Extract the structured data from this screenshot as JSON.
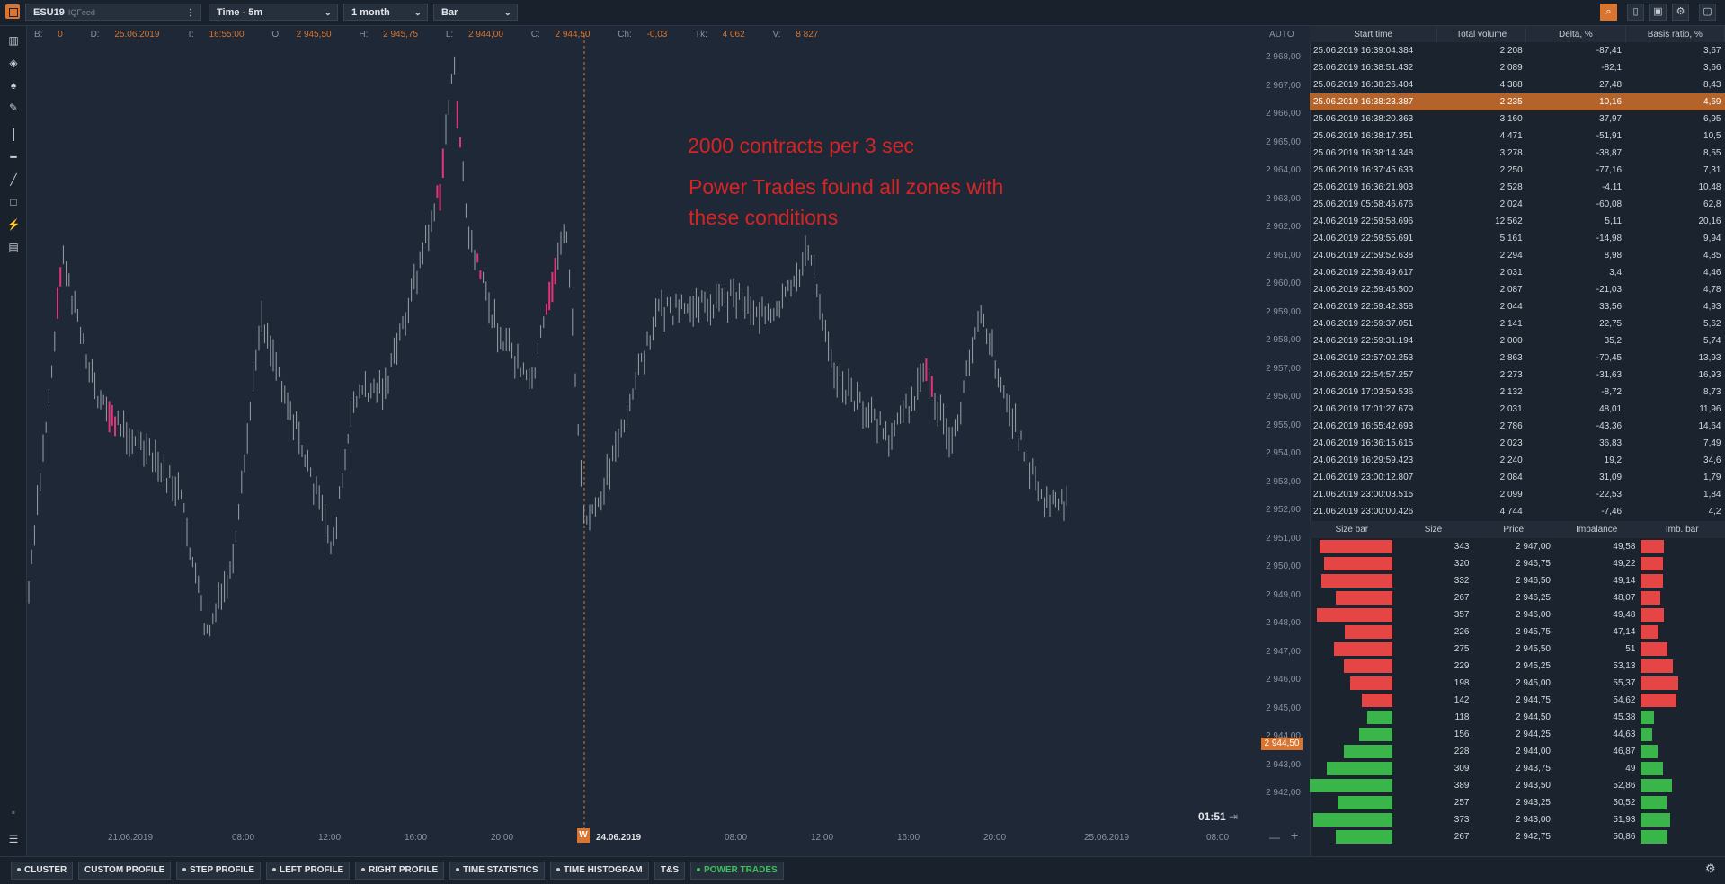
{
  "toolbar": {
    "symbol": "ESU19",
    "feed": "IQFeed",
    "timeframe": "Time - 5m",
    "period": "1 month",
    "chart_type": "Bar"
  },
  "infobar": {
    "b_label": "B:",
    "b_val": "0",
    "d_label": "D:",
    "d_val": "25.06.2019",
    "t_label": "T:",
    "t_val": "16:55:00",
    "o_label": "O:",
    "o_val": "2 945,50",
    "h_label": "H:",
    "h_val": "2 945,75",
    "l_label": "L:",
    "l_val": "2 944,00",
    "c_label": "C:",
    "c_val": "2 944,50",
    "ch_label": "Ch:",
    "ch_val": "-0,03",
    "tk_label": "Tk:",
    "tk_val": "4 062",
    "v_label": "V:",
    "v_val": "8 827"
  },
  "auto_label": "AUTO",
  "annotation": {
    "line1": "2000 contracts per 3 sec",
    "line2": "Power Trades found all zones with",
    "line3": "these conditions"
  },
  "price_axis": [
    "2 968,00",
    "2 967,00",
    "2 966,00",
    "2 965,00",
    "2 964,00",
    "2 963,00",
    "2 962,00",
    "2 961,00",
    "2 960,00",
    "2 959,00",
    "2 958,00",
    "2 957,00",
    "2 956,00",
    "2 955,00",
    "2 954,00",
    "2 953,00",
    "2 952,00",
    "2 951,00",
    "2 950,00",
    "2 949,00",
    "2 948,00",
    "2 947,00",
    "2 946,00",
    "2 945,00",
    "2 944,00",
    "2 943,00",
    "2 942,00"
  ],
  "current_price": "2 944,50",
  "time_axis": [
    "21.06.2019",
    "08:00",
    "12:00",
    "16:00",
    "20:00",
    "08:00",
    "12:00",
    "16:00",
    "20:00",
    "25.06.2019",
    "08:00"
  ],
  "week_badge": "W",
  "week_date": "24.06.2019",
  "timer": "01:51",
  "power_trades": {
    "headers": [
      "Start time",
      "Total volume",
      "Delta, %",
      "Basis ratio, %"
    ],
    "rows": [
      {
        "time": "25.06.2019 16:39:04.384",
        "vol": "2 208",
        "delta": "-87,41",
        "basis": "3,67",
        "sign": "neg"
      },
      {
        "time": "25.06.2019 16:38:51.432",
        "vol": "2 089",
        "delta": "-82,1",
        "basis": "3,66",
        "sign": "neg"
      },
      {
        "time": "25.06.2019 16:38:26.404",
        "vol": "4 388",
        "delta": "27,48",
        "basis": "8,43",
        "sign": "pos"
      },
      {
        "time": "25.06.2019 16:38:23.387",
        "vol": "2 235",
        "delta": "10,16",
        "basis": "4,69",
        "sign": "pos",
        "hl": true
      },
      {
        "time": "25.06.2019 16:38:20.363",
        "vol": "3 160",
        "delta": "37,97",
        "basis": "6,95",
        "sign": "pos"
      },
      {
        "time": "25.06.2019 16:38:17.351",
        "vol": "4 471",
        "delta": "-51,91",
        "basis": "10,5",
        "sign": "neg"
      },
      {
        "time": "25.06.2019 16:38:14.348",
        "vol": "3 278",
        "delta": "-38,87",
        "basis": "8,55",
        "sign": "neg"
      },
      {
        "time": "25.06.2019 16:37:45.633",
        "vol": "2 250",
        "delta": "-77,16",
        "basis": "7,31",
        "sign": "neg"
      },
      {
        "time": "25.06.2019 16:36:21.903",
        "vol": "2 528",
        "delta": "-4,11",
        "basis": "10,48",
        "sign": "neg"
      },
      {
        "time": "25.06.2019 05:58:46.676",
        "vol": "2 024",
        "delta": "-60,08",
        "basis": "62,8",
        "sign": "neg"
      },
      {
        "time": "24.06.2019 22:59:58.696",
        "vol": "12 562",
        "delta": "5,11",
        "basis": "20,16",
        "sign": "pos"
      },
      {
        "time": "24.06.2019 22:59:55.691",
        "vol": "5 161",
        "delta": "-14,98",
        "basis": "9,94",
        "sign": "neg"
      },
      {
        "time": "24.06.2019 22:59:52.638",
        "vol": "2 294",
        "delta": "8,98",
        "basis": "4,85",
        "sign": "pos"
      },
      {
        "time": "24.06.2019 22:59:49.617",
        "vol": "2 031",
        "delta": "3,4",
        "basis": "4,46",
        "sign": "pos"
      },
      {
        "time": "24.06.2019 22:59:46.500",
        "vol": "2 087",
        "delta": "-21,03",
        "basis": "4,78",
        "sign": "neg"
      },
      {
        "time": "24.06.2019 22:59:42.358",
        "vol": "2 044",
        "delta": "33,56",
        "basis": "4,93",
        "sign": "pos"
      },
      {
        "time": "24.06.2019 22:59:37.051",
        "vol": "2 141",
        "delta": "22,75",
        "basis": "5,62",
        "sign": "pos"
      },
      {
        "time": "24.06.2019 22:59:31.194",
        "vol": "2 000",
        "delta": "35,2",
        "basis": "5,74",
        "sign": "pos"
      },
      {
        "time": "24.06.2019 22:57:02.253",
        "vol": "2 863",
        "delta": "-70,45",
        "basis": "13,93",
        "sign": "neg"
      },
      {
        "time": "24.06.2019 22:54:57.257",
        "vol": "2 273",
        "delta": "-31,63",
        "basis": "16,93",
        "sign": "neg"
      },
      {
        "time": "24.06.2019 17:03:59.536",
        "vol": "2 132",
        "delta": "-8,72",
        "basis": "8,73",
        "sign": "neg"
      },
      {
        "time": "24.06.2019 17:01:27.679",
        "vol": "2 031",
        "delta": "48,01",
        "basis": "11,96",
        "sign": "pos"
      },
      {
        "time": "24.06.2019 16:55:42.693",
        "vol": "2 786",
        "delta": "-43,36",
        "basis": "14,64",
        "sign": "neg"
      },
      {
        "time": "24.06.2019 16:36:15.615",
        "vol": "2 023",
        "delta": "36,83",
        "basis": "7,49",
        "sign": "pos"
      },
      {
        "time": "24.06.2019 16:29:59.423",
        "vol": "2 240",
        "delta": "19,2",
        "basis": "34,6",
        "sign": "pos"
      },
      {
        "time": "21.06.2019 23:00:12.807",
        "vol": "2 084",
        "delta": "31,09",
        "basis": "1,79",
        "sign": "pos"
      },
      {
        "time": "21.06.2019 23:00:03.515",
        "vol": "2 099",
        "delta": "-22,53",
        "basis": "1,84",
        "sign": "neg"
      },
      {
        "time": "21.06.2019 23:00:00.426",
        "vol": "4 744",
        "delta": "-7,46",
        "basis": "4,2",
        "sign": "neg"
      }
    ]
  },
  "levels": {
    "headers": [
      "Size bar",
      "Size",
      "Price",
      "Imbalance",
      "Imb. bar"
    ],
    "rows": [
      {
        "size": "343",
        "price": "2 947,00",
        "imb": "49,58",
        "side": "red",
        "s": 343,
        "i": 49.58
      },
      {
        "size": "320",
        "price": "2 946,75",
        "imb": "49,22",
        "side": "red",
        "s": 320,
        "i": 49.22
      },
      {
        "size": "332",
        "price": "2 946,50",
        "imb": "49,14",
        "side": "red",
        "s": 332,
        "i": 49.14
      },
      {
        "size": "267",
        "price": "2 946,25",
        "imb": "48,07",
        "side": "red",
        "s": 267,
        "i": 48.07
      },
      {
        "size": "357",
        "price": "2 946,00",
        "imb": "49,48",
        "side": "red",
        "s": 357,
        "i": 49.48
      },
      {
        "size": "226",
        "price": "2 945,75",
        "imb": "47,14",
        "side": "red",
        "s": 226,
        "i": 47.14
      },
      {
        "size": "275",
        "price": "2 945,50",
        "imb": "51",
        "side": "red",
        "s": 275,
        "i": 51
      },
      {
        "size": "229",
        "price": "2 945,25",
        "imb": "53,13",
        "side": "red",
        "s": 229,
        "i": 53.13
      },
      {
        "size": "198",
        "price": "2 945,00",
        "imb": "55,37",
        "side": "red",
        "s": 198,
        "i": 55.37
      },
      {
        "size": "142",
        "price": "2 944,75",
        "imb": "54,62",
        "side": "red",
        "s": 142,
        "i": 54.62
      },
      {
        "size": "118",
        "price": "2 944,50",
        "imb": "45,38",
        "side": "green",
        "s": 118,
        "i": 45.38
      },
      {
        "size": "156",
        "price": "2 944,25",
        "imb": "44,63",
        "side": "green",
        "s": 156,
        "i": 44.63
      },
      {
        "size": "228",
        "price": "2 944,00",
        "imb": "46,87",
        "side": "green",
        "s": 228,
        "i": 46.87
      },
      {
        "size": "309",
        "price": "2 943,75",
        "imb": "49",
        "side": "green",
        "s": 309,
        "i": 49
      },
      {
        "size": "389",
        "price": "2 943,50",
        "imb": "52,86",
        "side": "green",
        "s": 389,
        "i": 52.86
      },
      {
        "size": "257",
        "price": "2 943,25",
        "imb": "50,52",
        "side": "green",
        "s": 257,
        "i": 50.52
      },
      {
        "size": "373",
        "price": "2 943,00",
        "imb": "51,93",
        "side": "green",
        "s": 373,
        "i": 51.93
      },
      {
        "size": "267",
        "price": "2 942,75",
        "imb": "50,86",
        "side": "green",
        "s": 267,
        "i": 50.86
      }
    ]
  },
  "bottom_tabs": [
    "CLUSTER",
    "CUSTOM PROFILE",
    "STEP PROFILE",
    "LEFT PROFILE",
    "RIGHT PROFILE",
    "TIME STATISTICS",
    "TIME HISTOGRAM",
    "T&S",
    "POWER TRADES"
  ],
  "colors": {
    "accent": "#d9752f",
    "bull": "#39b54a",
    "bear": "#e54545",
    "highlight": "#e0357a",
    "annotation": "#d42525"
  }
}
